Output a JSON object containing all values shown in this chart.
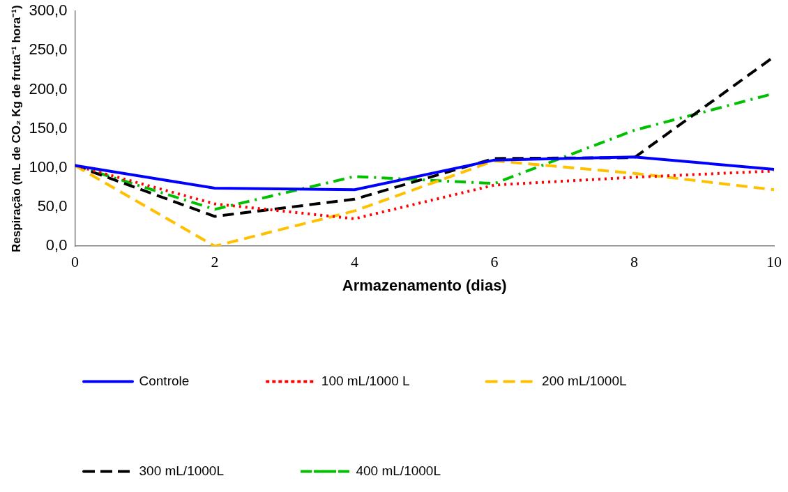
{
  "chart_data": {
    "type": "line",
    "xlabel": "Armazenamento (dias)",
    "ylabel": "Respiração (mL de CO₂ Kg de fruta⁻¹ hora⁻¹)",
    "x": [
      0,
      2,
      4,
      6,
      8,
      10
    ],
    "xlim": [
      0,
      10
    ],
    "xticks": [
      0,
      2,
      4,
      6,
      8,
      10
    ],
    "ylim": [
      0,
      300
    ],
    "yticks": [
      {
        "value": 0,
        "label": "0,0"
      },
      {
        "value": 50,
        "label": "50,0"
      },
      {
        "value": 100,
        "label": "100,0"
      },
      {
        "value": 150,
        "label": "150,0"
      },
      {
        "value": 200,
        "label": "200,0"
      },
      {
        "value": 250,
        "label": "250,0"
      },
      {
        "value": 300,
        "label": "300,0"
      }
    ],
    "grid": false,
    "legend": "bottom",
    "marker": "none",
    "series": [
      {
        "name": "Controle",
        "color": "#0000ff",
        "line_style": "solid",
        "values": [
          103,
          74,
          72,
          110,
          114,
          98
        ]
      },
      {
        "name": "100 mL/1000 L",
        "color": "#ff0000",
        "line_style": "dotted",
        "values": [
          103,
          54,
          35,
          78,
          88,
          96
        ]
      },
      {
        "name": "200 mL/1000L",
        "color": "#ffc000",
        "line_style": "dashed",
        "values": [
          103,
          0,
          45,
          109,
          93,
          72
        ]
      },
      {
        "name": "300 mL/1000L",
        "color": "#000000",
        "line_style": "dashed",
        "values": [
          103,
          38,
          60,
          112,
          113,
          242
        ]
      },
      {
        "name": "400 mL/1000L",
        "color": "#00c000",
        "line_style": "dashdot",
        "values": [
          103,
          47,
          89,
          80,
          148,
          195
        ]
      }
    ]
  }
}
